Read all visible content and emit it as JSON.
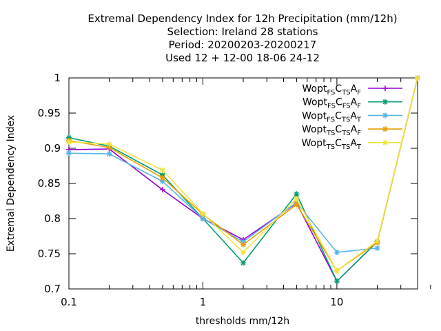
{
  "chart_data": {
    "type": "line",
    "title_lines": [
      "Extremal Dependency Index  for 12h Precipitation (mm/12h)",
      "Selection: Ireland     28 stations",
      "Period: 20200203-20200217",
      "Used  12 + 12-00 18-06 24-12"
    ],
    "xlabel": "thresholds mm/12h",
    "ylabel": "Extremal Dependency Index",
    "x_scale": "log",
    "xlim": [
      0.1,
      40
    ],
    "ylim": [
      0.7,
      1.0
    ],
    "x_ticks": [
      {
        "value": 0.1,
        "label": "0.1"
      },
      {
        "value": 1,
        "label": "1"
      },
      {
        "value": 10,
        "label": "10"
      }
    ],
    "y_ticks": [
      {
        "value": 0.7,
        "label": "0.7"
      },
      {
        "value": 0.75,
        "label": "0.75"
      },
      {
        "value": 0.8,
        "label": "0.8"
      },
      {
        "value": 0.85,
        "label": "0.85"
      },
      {
        "value": 0.9,
        "label": "0.9"
      },
      {
        "value": 0.95,
        "label": "0.95"
      },
      {
        "value": 1.0,
        "label": "1"
      }
    ],
    "x": [
      0.1,
      0.2,
      0.5,
      1,
      2,
      5,
      10,
      20,
      40
    ],
    "legend_position": "top-right",
    "series": [
      {
        "name_parts": [
          [
            "Wopt",
            ""
          ],
          [
            "FS",
            "sub"
          ],
          [
            "C",
            ""
          ],
          [
            "TS",
            "sub"
          ],
          [
            "A",
            ""
          ],
          [
            "F",
            "sub"
          ]
        ],
        "color": "#9400d3",
        "marker": "plus",
        "values": [
          0.898,
          0.899,
          0.841,
          0.8,
          0.77,
          0.822,
          0.711,
          0.767,
          1.0
        ]
      },
      {
        "name_parts": [
          [
            "Wopt",
            ""
          ],
          [
            "FS",
            "sub"
          ],
          [
            "C",
            ""
          ],
          [
            "FS",
            "sub"
          ],
          [
            "A",
            ""
          ],
          [
            "F",
            "sub"
          ]
        ],
        "color": "#009e73",
        "marker": "star",
        "values": [
          0.915,
          0.903,
          0.862,
          0.8,
          0.737,
          0.835,
          0.711,
          0.767,
          1.0
        ]
      },
      {
        "name_parts": [
          [
            "Wopt",
            ""
          ],
          [
            "FS",
            "sub"
          ],
          [
            "C",
            ""
          ],
          [
            "TS",
            "sub"
          ],
          [
            "A",
            ""
          ],
          [
            "T",
            "sub"
          ]
        ],
        "color": "#56b4e9",
        "marker": "star",
        "values": [
          0.893,
          0.892,
          0.853,
          0.8,
          0.767,
          0.823,
          0.752,
          0.758,
          null
        ]
      },
      {
        "name_parts": [
          [
            "Wopt",
            ""
          ],
          [
            "TS",
            "sub"
          ],
          [
            "C",
            ""
          ],
          [
            "TS",
            "sub"
          ],
          [
            "A",
            ""
          ],
          [
            "F",
            "sub"
          ]
        ],
        "color": "#e69f00",
        "marker": "star",
        "values": [
          0.911,
          0.901,
          0.858,
          0.806,
          0.763,
          0.82,
          0.726,
          0.766,
          1.0
        ]
      },
      {
        "name_parts": [
          [
            "Wopt",
            ""
          ],
          [
            "TS",
            "sub"
          ],
          [
            "C",
            ""
          ],
          [
            "TS",
            "sub"
          ],
          [
            "A",
            ""
          ],
          [
            "T",
            "sub"
          ]
        ],
        "color": "#f0e442",
        "marker": "star",
        "values": [
          0.909,
          0.906,
          0.869,
          0.807,
          0.752,
          0.828,
          0.726,
          0.768,
          1.0
        ]
      }
    ]
  }
}
